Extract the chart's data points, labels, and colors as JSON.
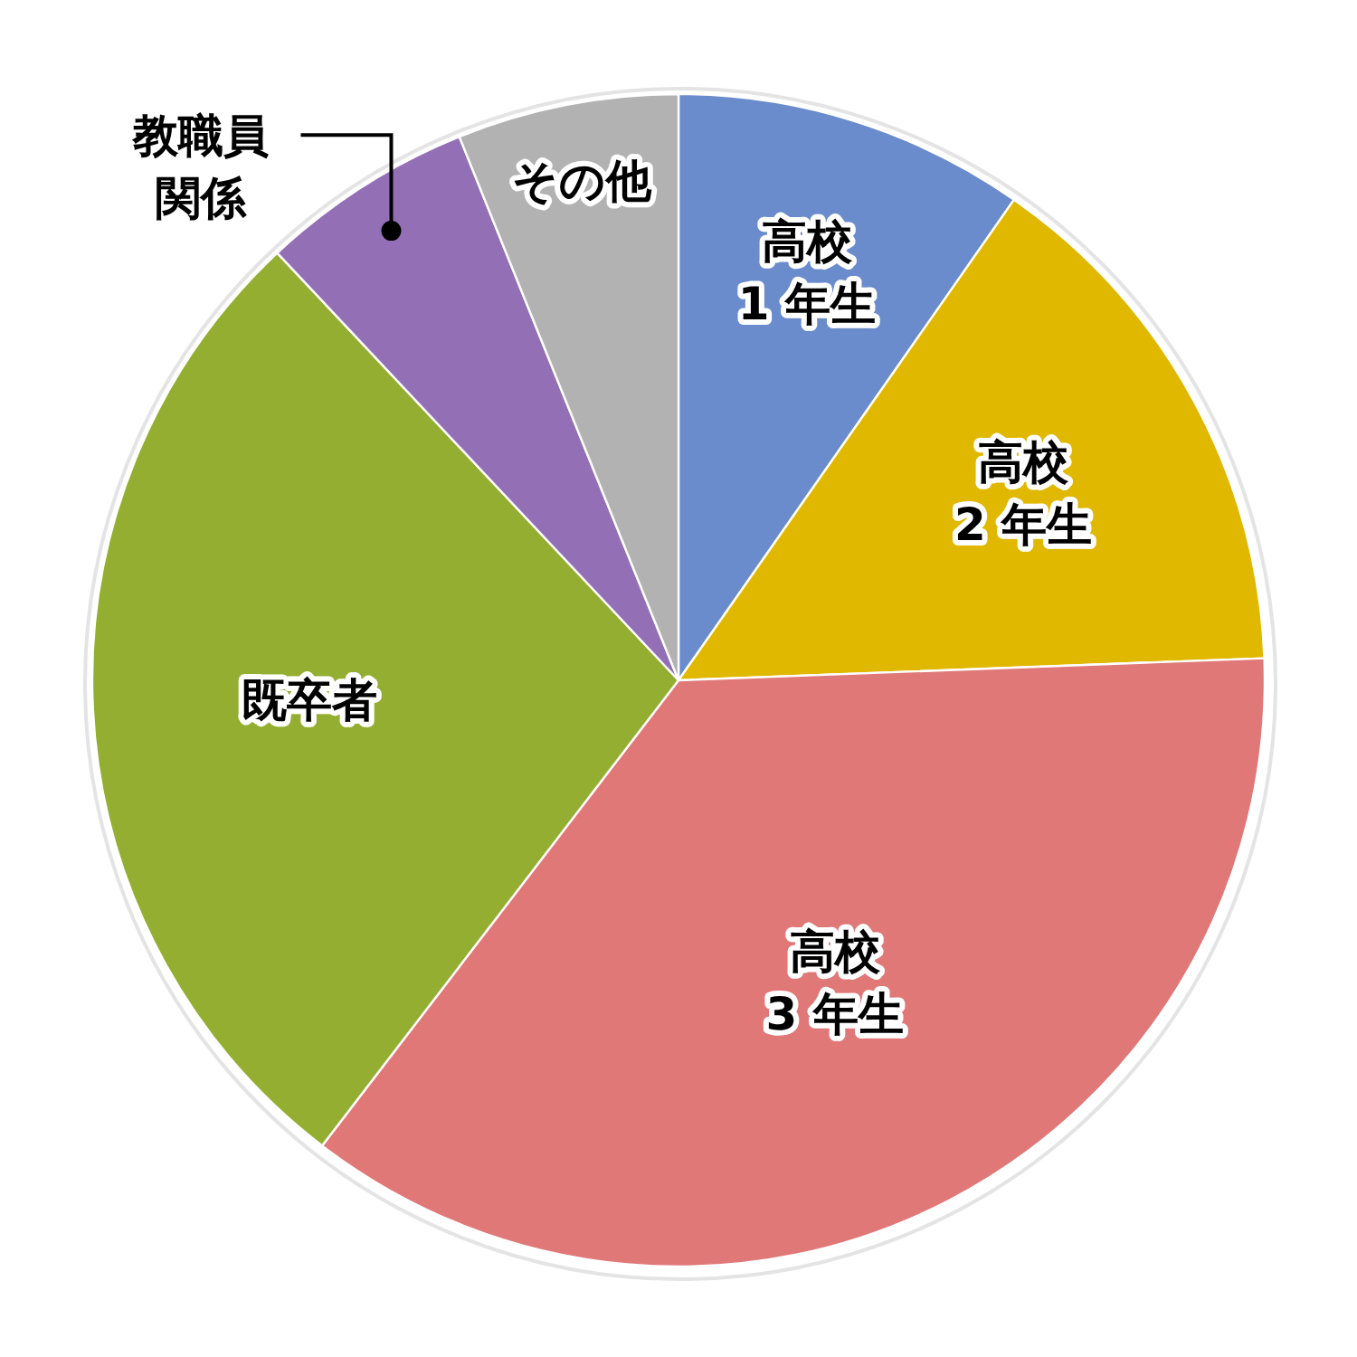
{
  "chart_data": {
    "type": "pie",
    "categories": [
      "高校\n1 年生",
      "高校\n2 年生",
      "高校\n3 年生",
      "既卒者",
      "教職員関係",
      "その他"
    ],
    "values": [
      9.7,
      14.7,
      36.0,
      27.6,
      5.9,
      6.1
    ],
    "colors": [
      "#6a8ccc",
      "#e0b800",
      "#e07878",
      "#93ae30",
      "#9370b5",
      "#b2b2b2"
    ]
  }
}
